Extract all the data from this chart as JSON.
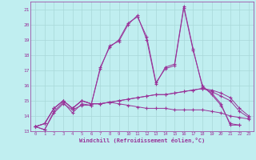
{
  "bg_color": "#c0eef0",
  "line_color": "#993399",
  "grid_color": "#a8d8d8",
  "xlabel": "Windchill (Refroidissement éolien,°C)",
  "xlim": [
    -0.5,
    23.5
  ],
  "ylim": [
    13.0,
    21.5
  ],
  "yticks": [
    13,
    14,
    15,
    16,
    17,
    18,
    19,
    20,
    21
  ],
  "xticks": [
    0,
    1,
    2,
    3,
    4,
    5,
    6,
    7,
    8,
    9,
    10,
    11,
    12,
    13,
    14,
    15,
    16,
    17,
    18,
    19,
    20,
    21,
    22,
    23
  ],
  "series": [
    [
      13.3,
      13.1,
      14.2,
      14.8,
      14.4,
      14.7,
      14.7,
      17.1,
      18.6,
      18.9,
      20.0,
      20.6,
      19.0,
      16.1,
      17.2,
      17.4,
      21.2,
      18.4,
      15.9,
      15.5,
      14.8,
      13.4,
      13.4,
      null
    ],
    [
      13.3,
      13.1,
      14.3,
      14.9,
      14.2,
      14.8,
      14.7,
      17.2,
      18.5,
      19.0,
      20.1,
      20.5,
      19.2,
      16.2,
      17.1,
      17.3,
      21.1,
      18.3,
      16.0,
      15.4,
      14.7,
      13.5,
      13.4,
      null
    ],
    [
      13.3,
      13.5,
      14.5,
      15.0,
      14.5,
      15.0,
      14.8,
      14.8,
      14.9,
      15.0,
      15.1,
      15.2,
      15.3,
      15.4,
      15.4,
      15.5,
      15.6,
      15.7,
      15.8,
      15.7,
      15.5,
      15.2,
      14.5,
      14.0
    ],
    [
      13.3,
      13.5,
      14.5,
      15.0,
      14.5,
      15.0,
      14.8,
      14.8,
      14.9,
      15.0,
      15.1,
      15.2,
      15.3,
      15.4,
      15.4,
      15.5,
      15.6,
      15.7,
      15.8,
      15.6,
      15.3,
      15.0,
      14.3,
      13.9
    ],
    [
      13.3,
      13.5,
      14.5,
      15.0,
      14.5,
      15.0,
      14.8,
      14.8,
      14.9,
      14.8,
      14.7,
      14.6,
      14.5,
      14.5,
      14.5,
      14.4,
      14.4,
      14.4,
      14.4,
      14.3,
      14.2,
      14.0,
      13.9,
      13.8
    ]
  ]
}
